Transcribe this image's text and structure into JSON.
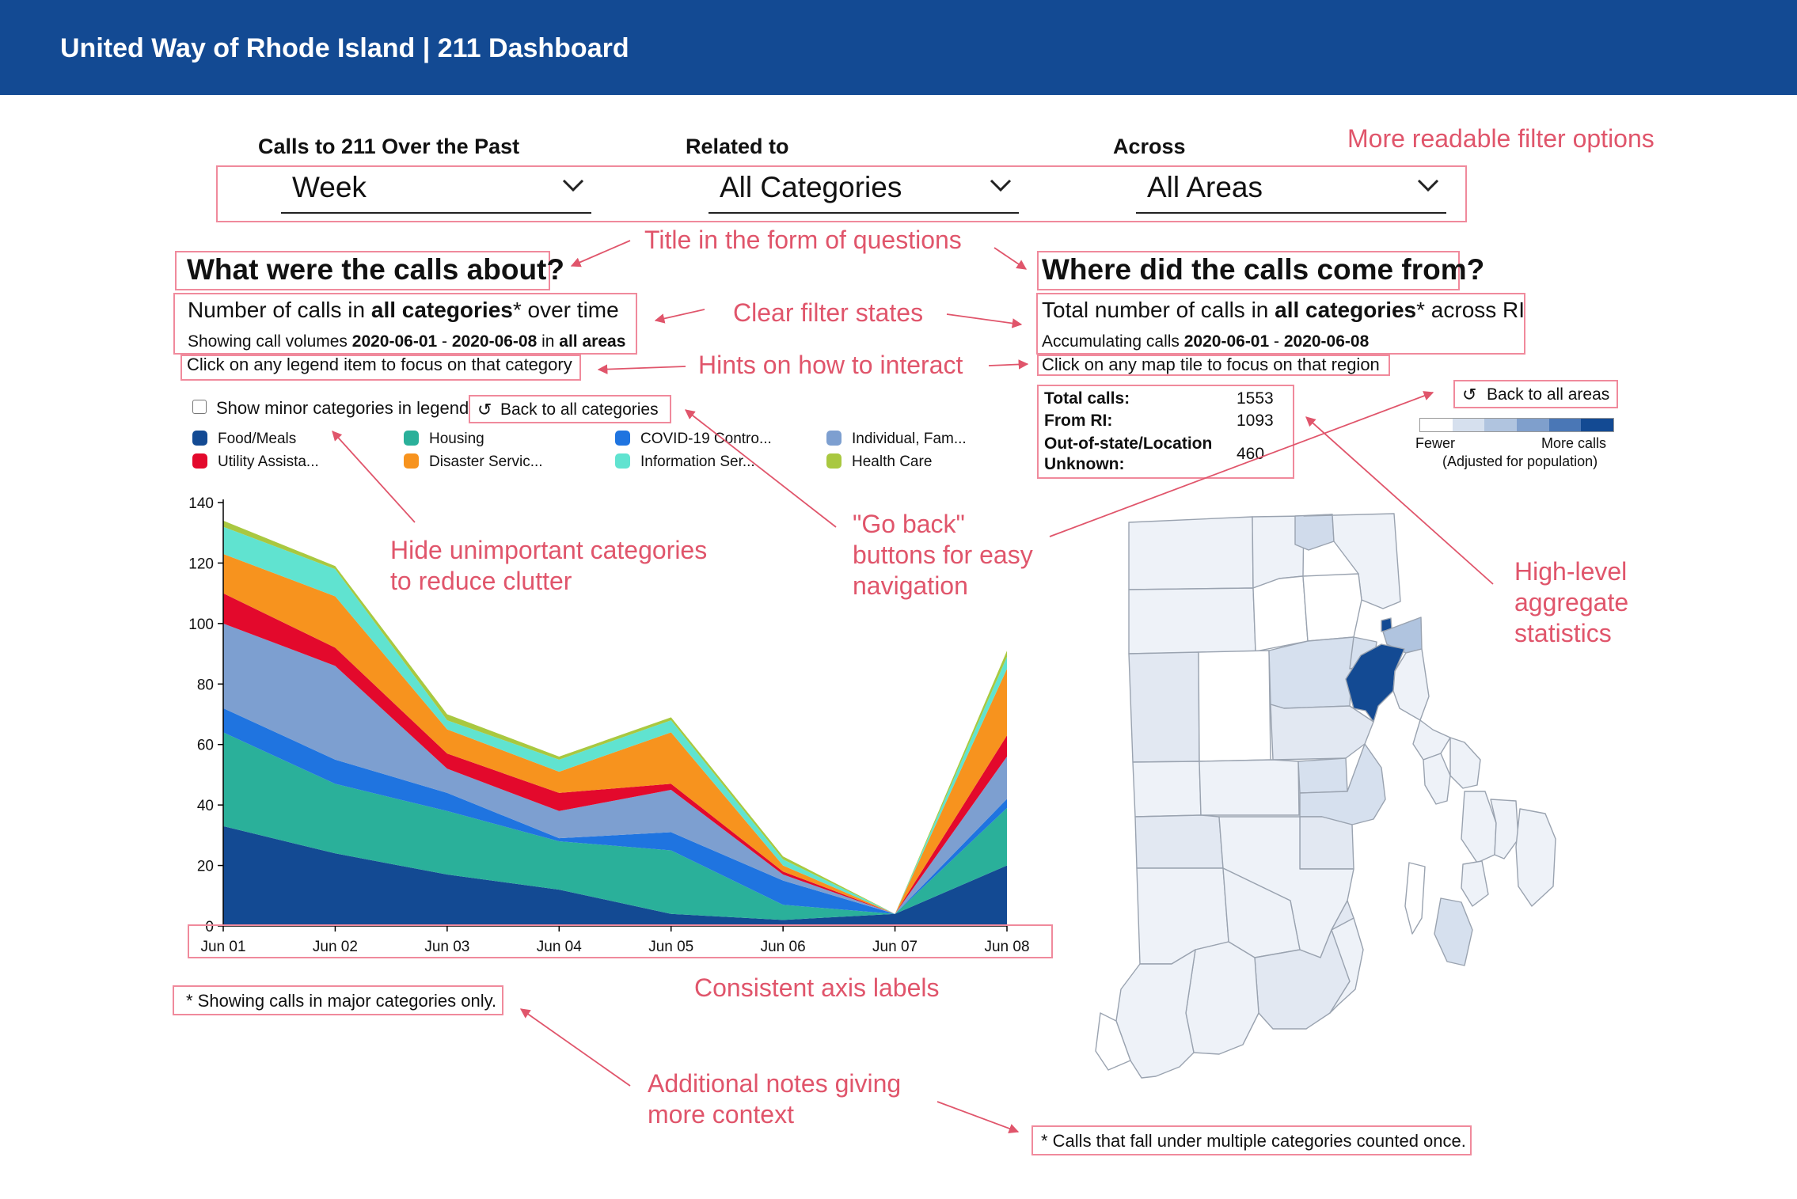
{
  "header": {
    "title": "United Way of Rhode Island | 211 Dashboard",
    "background": "#134a93"
  },
  "filters": {
    "period": {
      "label": "Calls to 211 Over the Past",
      "value": "Week"
    },
    "category": {
      "label": "Related to",
      "value": "All Categories"
    },
    "area": {
      "label": "Across",
      "value": "All Areas"
    }
  },
  "left": {
    "title": "What were the calls about?",
    "subtitle": {
      "pre": "Number of calls in ",
      "bold": "all categories",
      "post": "* over time"
    },
    "range": {
      "pre": "Showing call volumes ",
      "start": "2020-06-01",
      "dash": " - ",
      "end": "2020-06-08",
      "mid": " in ",
      "area": "all areas"
    },
    "hint": "Click on any legend item to focus on that category",
    "minor_checkbox_label": "Show minor categories in legend",
    "back_button": "Back to all categories",
    "footnote": "* Showing calls in major categories only."
  },
  "right": {
    "title": "Where did the calls come from?",
    "subtitle": {
      "pre": "Total number of calls in ",
      "bold": "all categories",
      "post": "* across RI"
    },
    "range": {
      "pre": "Accumulating calls ",
      "start": "2020-06-01",
      "dash": " - ",
      "end": "2020-06-08"
    },
    "hint": "Click on any map tile to focus on that region",
    "back_button": "Back to all areas",
    "stats": {
      "total_label": "Total calls:",
      "total_value": "1553",
      "ri_label": "From RI:",
      "ri_value": "1093",
      "oos_label1": "Out-of-state/Location",
      "oos_label2": "Unknown:",
      "oos_value": "460"
    },
    "scale": {
      "fewer": "Fewer",
      "more": "More calls",
      "note": "(Adjusted for population)",
      "colors": [
        "#ffffff",
        "#d6e0ee",
        "#b0c4df",
        "#7f9fcc",
        "#4a77b6",
        "#134a93"
      ]
    },
    "footnote": "* Calls that fall under multiple categories counted once."
  },
  "annotations": {
    "filters": "More readable filter options",
    "titles": "Title in the form of questions",
    "filter_states": "Clear filter states",
    "hints": "Hints on how to interact",
    "hide1": "Hide unimportant categories",
    "hide2": "to reduce clutter",
    "goback1": "\"Go back\"",
    "goback2": "buttons for easy",
    "goback3": "navigation",
    "stats1": "High-level",
    "stats2": "aggregate",
    "stats3": "statistics",
    "axis": "Consistent axis labels",
    "notes1": "Additional notes giving",
    "notes2": "more context"
  },
  "chart_data": {
    "type": "area",
    "stacked": true,
    "categories": [
      "Jun 01",
      "Jun 02",
      "Jun 03",
      "Jun 04",
      "Jun 05",
      "Jun 06",
      "Jun 07",
      "Jun 08"
    ],
    "ylim": [
      0,
      140
    ],
    "yticks": [
      0,
      20,
      40,
      60,
      80,
      100,
      120,
      140
    ],
    "title": "",
    "xlabel": "",
    "ylabel": "",
    "series": [
      {
        "name": "Food/Meals",
        "color": "#134a93",
        "values": [
          33,
          24,
          17,
          12,
          4,
          2,
          4,
          20
        ]
      },
      {
        "name": "Housing",
        "color": "#2ab09a",
        "values": [
          31,
          23,
          21,
          16,
          21,
          5,
          0,
          19
        ]
      },
      {
        "name": "COVID-19 Contro...",
        "color": "#1f74e0",
        "values": [
          8,
          8,
          6,
          1,
          6,
          8,
          0,
          3
        ]
      },
      {
        "name": "Individual, Fam...",
        "color": "#7d9fd0",
        "values": [
          28,
          31,
          8,
          9,
          14,
          2,
          0,
          14
        ]
      },
      {
        "name": "Utility Assista...",
        "color": "#e3092c",
        "values": [
          10,
          6,
          5,
          6,
          2,
          1,
          0,
          7
        ]
      },
      {
        "name": "Disaster Servic...",
        "color": "#f7931e",
        "values": [
          13,
          17,
          8,
          7,
          17,
          2,
          0,
          22
        ]
      },
      {
        "name": "Information Ser...",
        "color": "#60e3d0",
        "values": [
          9,
          9,
          3,
          4,
          4,
          2,
          0,
          4
        ]
      },
      {
        "name": "Health Care",
        "color": "#a9c840",
        "values": [
          2,
          1,
          2,
          1,
          1,
          1,
          0,
          2
        ]
      }
    ]
  }
}
